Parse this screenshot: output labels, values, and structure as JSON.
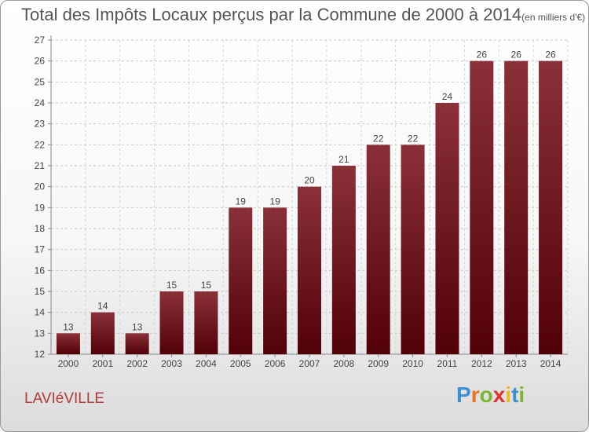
{
  "chart_data": {
    "type": "bar",
    "title": "Total des Impôts Locaux perçus par la Commune de 2000 à 2014",
    "subtitle": "(en milliers d'€)",
    "categories": [
      "2000",
      "2001",
      "2002",
      "2003",
      "2004",
      "2005",
      "2006",
      "2007",
      "2008",
      "2009",
      "2010",
      "2011",
      "2012",
      "2013",
      "2014"
    ],
    "values": [
      13,
      14,
      13,
      15,
      15,
      19,
      19,
      20,
      21,
      22,
      22,
      24,
      26,
      26,
      26
    ],
    "ylim": [
      12,
      27
    ],
    "yticks": [
      12,
      13,
      14,
      15,
      16,
      17,
      18,
      19,
      20,
      21,
      22,
      23,
      24,
      25,
      26,
      27
    ],
    "xlabel": "",
    "ylabel": "",
    "legend": "none",
    "bar_color_top": "#8a3038",
    "bar_color_bottom": "#520008"
  },
  "commune": "LAVIéVILLE",
  "logo": {
    "letters": [
      {
        "ch": "P",
        "color": "#3d8fd1"
      },
      {
        "ch": "r",
        "color": "#e8731c"
      },
      {
        "ch": "o",
        "color": "#7cb82f"
      },
      {
        "ch": "x",
        "color": "#e03030"
      },
      {
        "ch": "i",
        "color": "#f2b81c"
      },
      {
        "ch": "t",
        "color": "#3d8fd1"
      },
      {
        "ch": "i",
        "color": "#7cb82f"
      }
    ]
  }
}
